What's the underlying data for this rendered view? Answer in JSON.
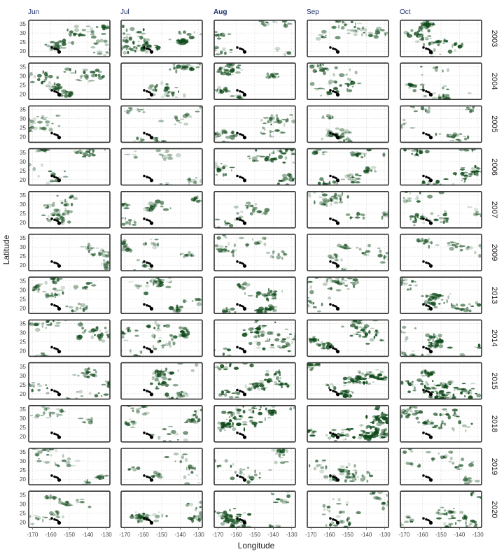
{
  "chart_data": {
    "type": "heatmap",
    "description_kind": "faceted spatial map grid (month columns x year rows)",
    "columns": [
      "Jun",
      "Jul",
      "Aug",
      "Sep",
      "Oct"
    ],
    "rows": [
      "2003",
      "2004",
      "2005",
      "2006",
      "2007",
      "2009",
      "2013",
      "2014",
      "2015",
      "2018",
      "2019",
      "2020"
    ],
    "xlabel": "Longitude",
    "ylabel": "Latitude",
    "xlim": [
      -172,
      -128
    ],
    "ylim": [
      17,
      37
    ],
    "x_ticks": [
      -170,
      -160,
      -150,
      -140,
      -130
    ],
    "y_ticks": [
      20,
      25,
      30,
      35
    ],
    "x_tick_labels": [
      "-170",
      "-160",
      "-150",
      "-140",
      "-130"
    ],
    "y_tick_labels": [
      "20",
      "25",
      "30",
      "35"
    ],
    "grid": true,
    "fill_color": "#0f4a1a",
    "border_color": "#333333",
    "hawaii_islands": [
      {
        "lon": -159.5,
        "lat": 22.05,
        "r": 0.45
      },
      {
        "lon": -158.0,
        "lat": 21.45,
        "r": 0.4
      },
      {
        "lon": -157.0,
        "lat": 21.1,
        "r": 0.35
      },
      {
        "lon": -156.3,
        "lat": 20.8,
        "r": 0.35
      },
      {
        "lon": -155.5,
        "lat": 19.6,
        "r": 0.75
      }
    ],
    "density": [
      [
        0.45,
        0.55,
        0.35,
        0.35,
        0.55
      ],
      [
        0.45,
        0.45,
        0.45,
        0.4,
        0.4
      ],
      [
        0.2,
        0.25,
        0.35,
        0.3,
        0.3
      ],
      [
        0.4,
        0.25,
        0.55,
        0.45,
        0.6
      ],
      [
        0.3,
        0.3,
        0.25,
        0.3,
        0.45
      ],
      [
        0.2,
        0.25,
        0.25,
        0.25,
        0.3
      ],
      [
        0.45,
        0.4,
        0.45,
        0.45,
        0.45
      ],
      [
        0.45,
        0.5,
        0.55,
        0.55,
        0.55
      ],
      [
        0.45,
        0.5,
        0.6,
        0.65,
        0.65
      ],
      [
        0.15,
        0.4,
        0.65,
        0.7,
        0.45
      ],
      [
        0.35,
        0.3,
        0.4,
        0.35,
        0.3
      ],
      [
        0.25,
        0.4,
        0.55,
        0.5,
        0.55
      ]
    ]
  }
}
